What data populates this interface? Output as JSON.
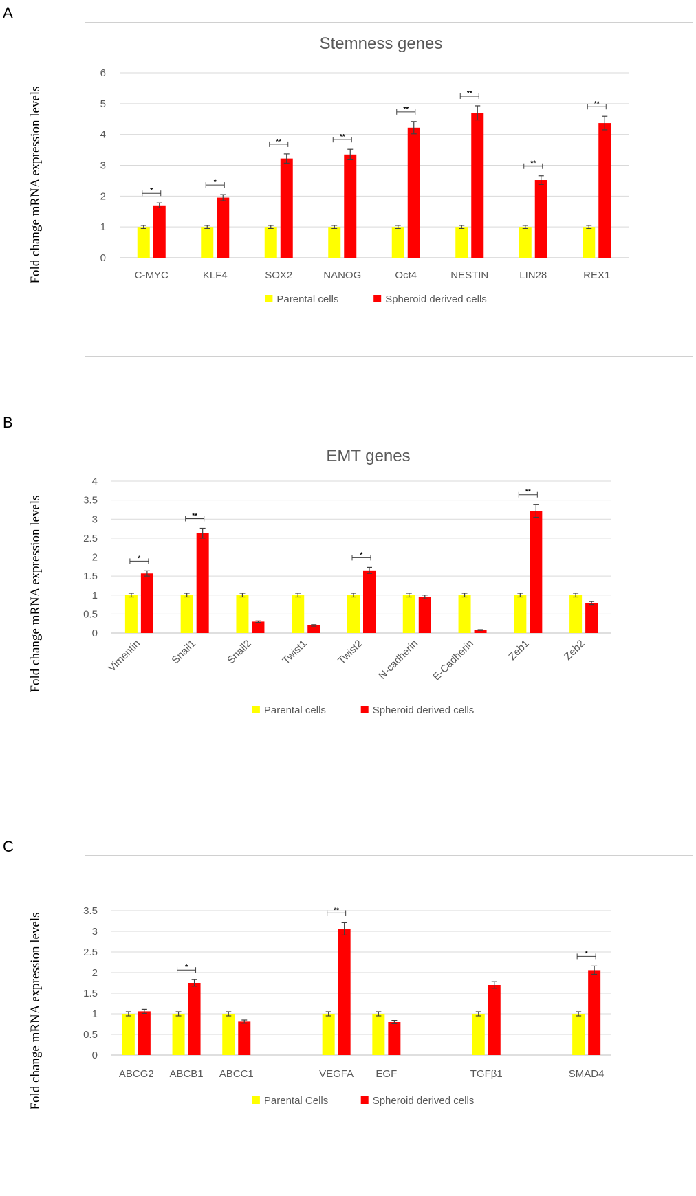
{
  "panels": [
    {
      "letter": "A",
      "ylabel": "Fold change mRNA expression levels"
    },
    {
      "letter": "B",
      "ylabel": "Fold change mRNA expression levels"
    },
    {
      "letter": "C",
      "ylabel": "Fold change mRNA expression levels"
    }
  ],
  "chart_data": [
    {
      "type": "bar",
      "title": "Stemness genes",
      "xlabel": "",
      "ylabel": "Fold change mRNA expression levels",
      "ylim": [
        0,
        6
      ],
      "yticks": [
        "0",
        "1",
        "2",
        "3",
        "4",
        "5",
        "6"
      ],
      "categories": [
        "C-MYC",
        "KLF4",
        "SOX2",
        "NANOG",
        "Oct4",
        "NESTIN",
        "LIN28",
        "REX1"
      ],
      "series": [
        {
          "name": "Parental cells",
          "color": "#ffff00",
          "values": [
            1,
            1,
            1,
            1,
            1,
            1,
            1,
            1
          ],
          "errors": [
            0.05,
            0.05,
            0.05,
            0.05,
            0.05,
            0.05,
            0.05,
            0.05
          ]
        },
        {
          "name": "Spheroid derived cells",
          "color": "#ff0000",
          "values": [
            1.7,
            1.95,
            3.22,
            3.35,
            4.22,
            4.7,
            2.52,
            4.37
          ],
          "errors": [
            0.08,
            0.1,
            0.15,
            0.17,
            0.2,
            0.23,
            0.14,
            0.22
          ]
        }
      ],
      "significance": [
        "*",
        "*",
        "**",
        "**",
        "**",
        "**",
        "**",
        "**"
      ]
    },
    {
      "type": "bar",
      "title": "EMT genes",
      "xlabel": "",
      "ylabel": "Fold change mRNA expression levels",
      "ylim": [
        0,
        4
      ],
      "yticks": [
        "0",
        "0.5",
        "1",
        "1.5",
        "2",
        "2.5",
        "3",
        "3.5",
        "4"
      ],
      "categories": [
        "Vimentin",
        "Snail1",
        "Snail2",
        "Twist1",
        "Twist2",
        "N-cadherin",
        "E-Cadherin",
        "Zeb1",
        "Zeb2"
      ],
      "series": [
        {
          "name": "Parental cells",
          "color": "#ffff00",
          "values": [
            1,
            1,
            1,
            1,
            1,
            1,
            1,
            1,
            1
          ],
          "errors": [
            0.05,
            0.05,
            0.05,
            0.05,
            0.05,
            0.05,
            0.05,
            0.05,
            0.05
          ]
        },
        {
          "name": "Spheroid derived cells",
          "color": "#ff0000",
          "values": [
            1.57,
            2.63,
            0.3,
            0.2,
            1.65,
            0.95,
            0.08,
            3.22,
            0.79
          ],
          "errors": [
            0.07,
            0.13,
            0.02,
            0.02,
            0.08,
            0.05,
            0.01,
            0.17,
            0.04
          ]
        }
      ],
      "significance": [
        "*",
        "**",
        "",
        "",
        "*",
        "",
        "",
        "**",
        ""
      ]
    },
    {
      "type": "bar",
      "title": "",
      "xlabel": "",
      "ylabel": "Fold change mRNA expression levels",
      "ylim": [
        0,
        3.5
      ],
      "yticks": [
        "0",
        "0.5",
        "1",
        "1.5",
        "2",
        "2.5",
        "3",
        "3.5"
      ],
      "categories": [
        "ABCG2",
        "ABCB1",
        "ABCC1",
        "",
        "VEGFA",
        "EGF",
        "",
        "TGFβ1",
        "",
        "SMAD4"
      ],
      "series": [
        {
          "name": "Parental Cells",
          "color": "#ffff00",
          "values": [
            1,
            1,
            1,
            null,
            1,
            1,
            null,
            1,
            null,
            1
          ],
          "errors": [
            0.05,
            0.05,
            0.05,
            null,
            0.05,
            0.05,
            null,
            0.05,
            null,
            0.05
          ]
        },
        {
          "name": "Spheroid derived cells",
          "color": "#ff0000",
          "values": [
            1.06,
            1.75,
            0.81,
            null,
            3.06,
            0.8,
            null,
            1.7,
            null,
            2.06
          ],
          "errors": [
            0.05,
            0.08,
            0.04,
            null,
            0.15,
            0.04,
            null,
            0.08,
            null,
            0.1
          ]
        }
      ],
      "significance": [
        "",
        "*",
        "",
        "",
        "**",
        "",
        "",
        "",
        "",
        "*"
      ]
    }
  ]
}
